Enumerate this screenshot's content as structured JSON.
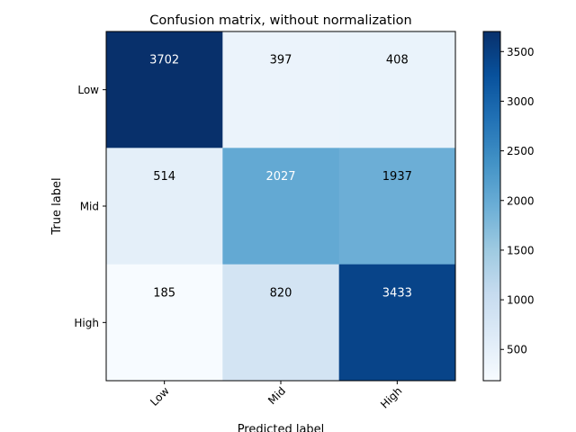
{
  "chart_data": {
    "type": "heatmap",
    "title": "Confusion matrix, without normalization",
    "xlabel": "Predicted label",
    "ylabel": "True label",
    "x_categories": [
      "Low",
      "Mid",
      "High"
    ],
    "y_categories": [
      "Low",
      "Mid",
      "High"
    ],
    "values": [
      [
        3702,
        397,
        408
      ],
      [
        514,
        2027,
        1937
      ],
      [
        185,
        820,
        3433
      ]
    ],
    "colormap": "Blues",
    "color_range": [
      185,
      3702
    ],
    "colorbar_ticks": [
      500,
      1000,
      1500,
      2000,
      2500,
      3000,
      3500
    ],
    "grid": false,
    "xtick_rotation": "45deg"
  }
}
